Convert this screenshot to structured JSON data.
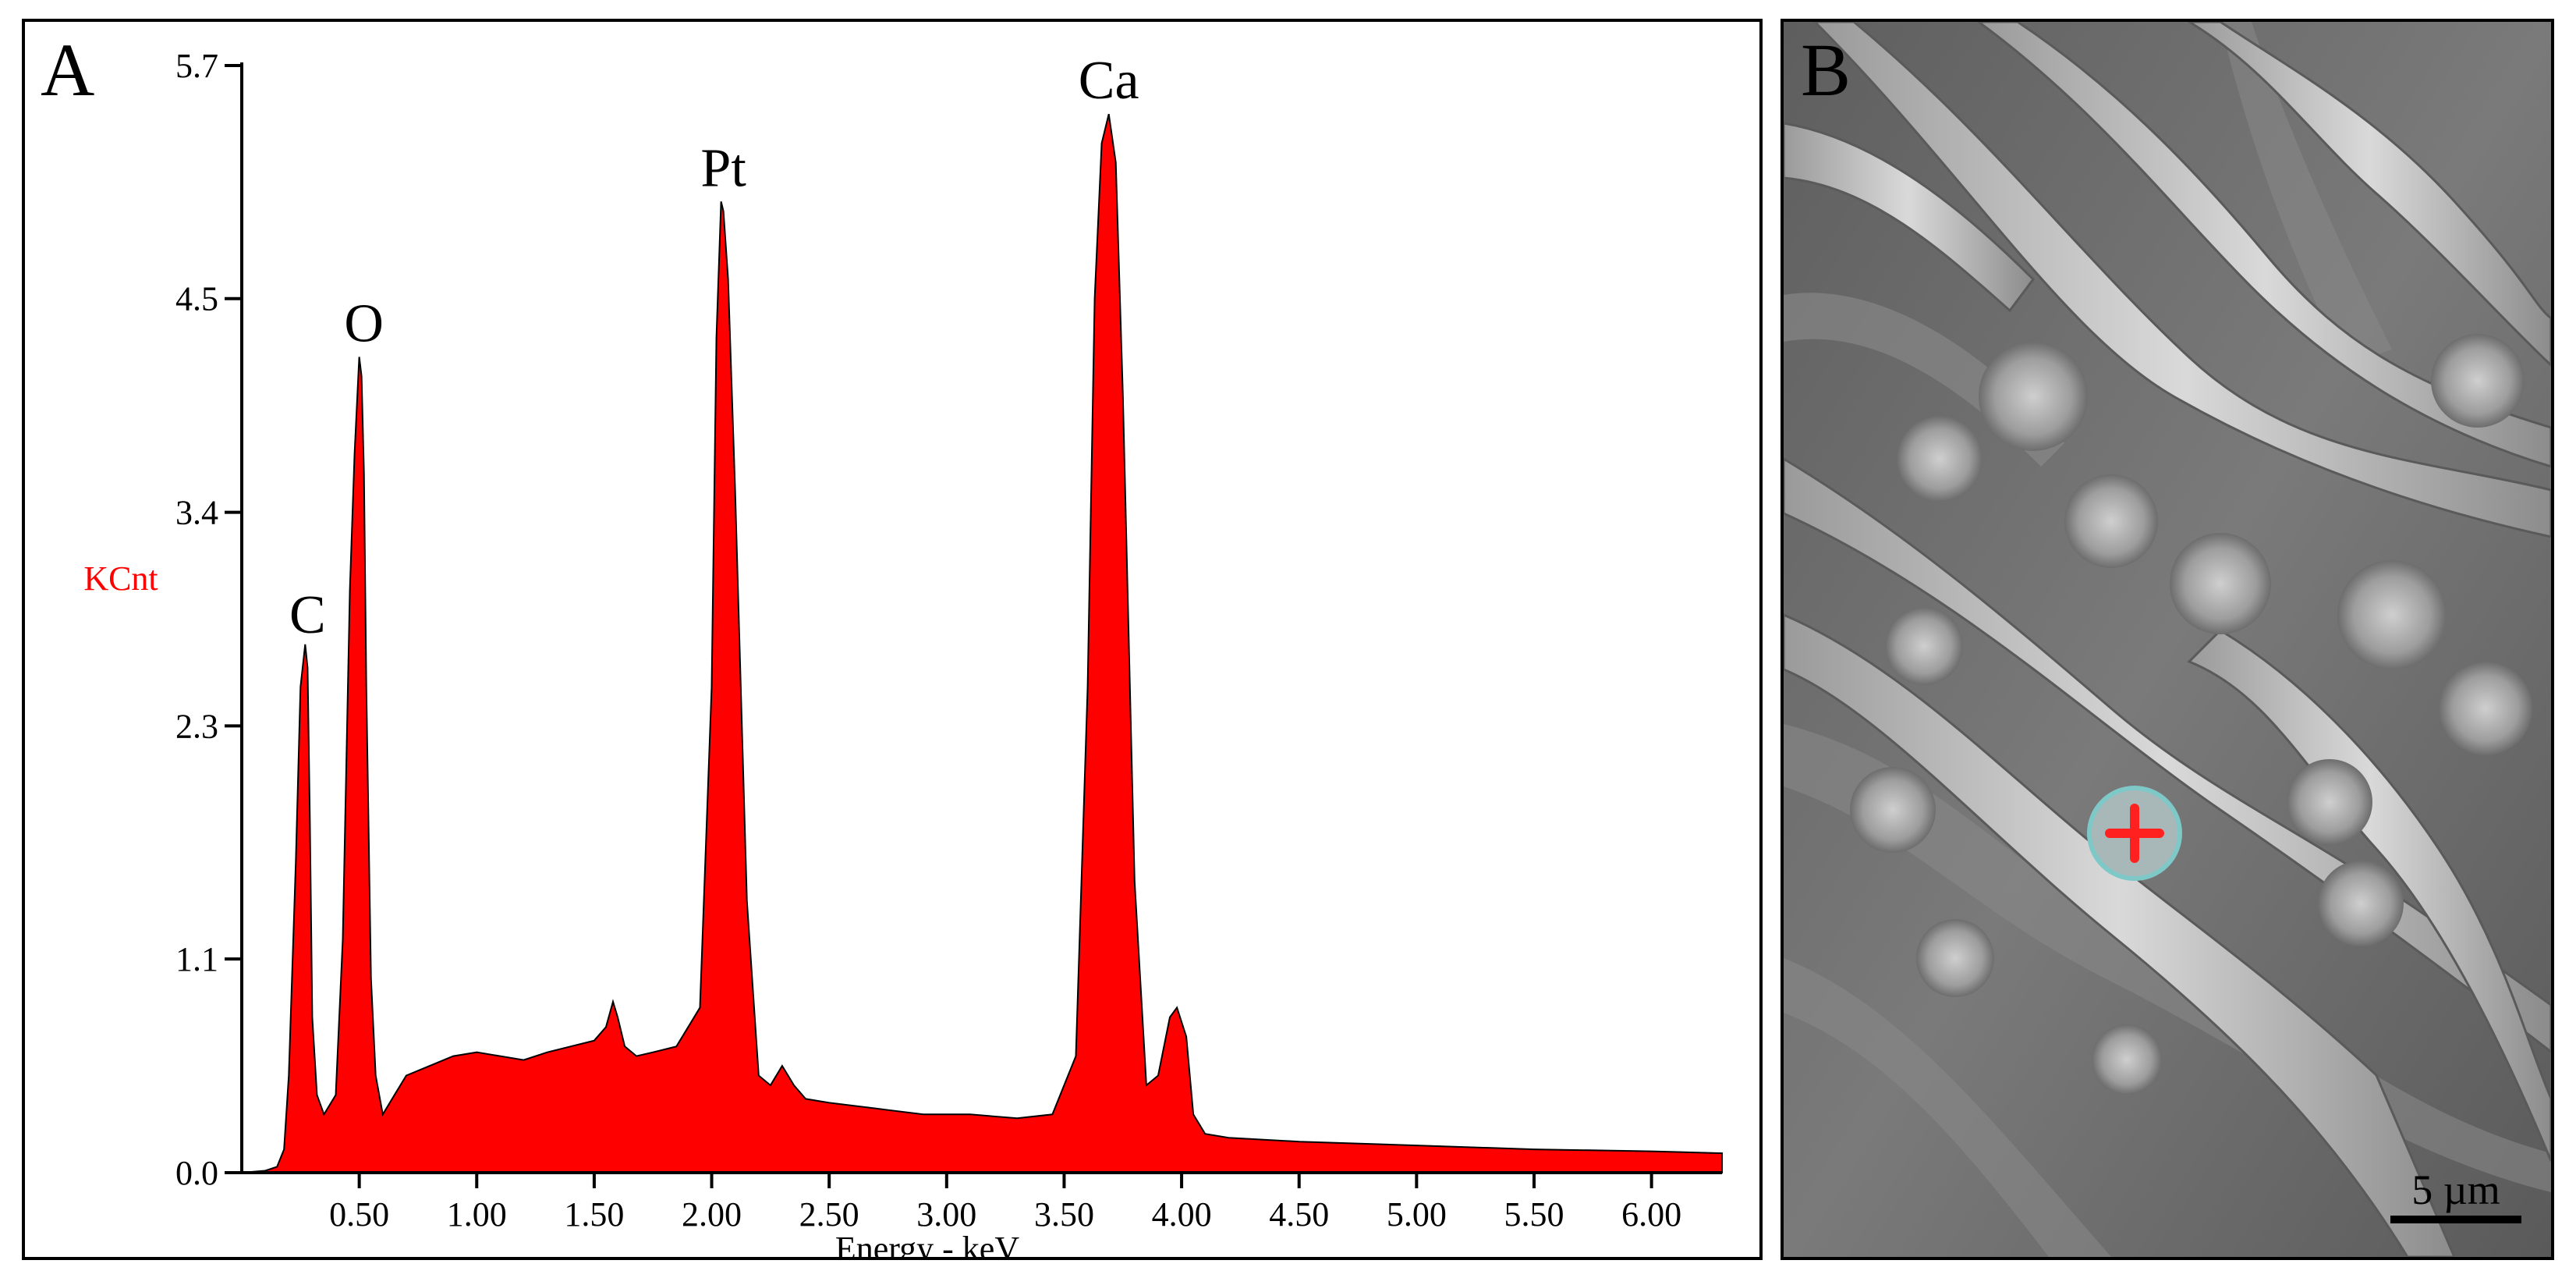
{
  "panels": {
    "a_label": "A",
    "b_label": "B"
  },
  "chart_data": {
    "type": "area",
    "xlabel": "Energy - keV",
    "ylabel": "KCnt",
    "xlim": [
      0.0,
      6.3
    ],
    "ylim": [
      0.0,
      5.7
    ],
    "x_ticks": [
      "0.50",
      "1.00",
      "1.50",
      "2.00",
      "2.50",
      "3.00",
      "3.50",
      "4.00",
      "4.50",
      "5.00",
      "5.50",
      "6.00"
    ],
    "y_ticks": [
      "0.0",
      "1.1",
      "2.3",
      "3.4",
      "4.5",
      "5.7"
    ],
    "colors": {
      "fill": "#ff0000",
      "ylabel": "#ff0000"
    },
    "peak_labels": [
      {
        "text": "C",
        "x": 0.28,
        "y": 2.7
      },
      {
        "text": "O",
        "x": 0.52,
        "y": 4.2
      },
      {
        "text": "Pt",
        "x": 2.05,
        "y": 5.0
      },
      {
        "text": "Ca",
        "x": 3.69,
        "y": 5.45
      }
    ],
    "x": [
      0.0,
      0.1,
      0.15,
      0.18,
      0.2,
      0.23,
      0.25,
      0.27,
      0.28,
      0.29,
      0.3,
      0.32,
      0.35,
      0.4,
      0.43,
      0.46,
      0.48,
      0.5,
      0.51,
      0.52,
      0.53,
      0.55,
      0.57,
      0.6,
      0.65,
      0.7,
      0.8,
      0.9,
      1.0,
      1.1,
      1.2,
      1.3,
      1.4,
      1.5,
      1.55,
      1.58,
      1.6,
      1.63,
      1.68,
      1.75,
      1.85,
      1.95,
      2.0,
      2.02,
      2.04,
      2.05,
      2.07,
      2.1,
      2.15,
      2.2,
      2.25,
      2.3,
      2.35,
      2.4,
      2.5,
      2.7,
      2.9,
      3.1,
      3.3,
      3.45,
      3.55,
      3.6,
      3.63,
      3.66,
      3.69,
      3.72,
      3.75,
      3.8,
      3.85,
      3.9,
      3.95,
      3.98,
      4.02,
      4.05,
      4.1,
      4.2,
      4.5,
      5.0,
      5.5,
      6.0,
      6.3
    ],
    "y": [
      0.0,
      0.01,
      0.03,
      0.12,
      0.5,
      1.6,
      2.5,
      2.72,
      2.6,
      1.8,
      0.8,
      0.4,
      0.3,
      0.4,
      1.2,
      3.0,
      3.7,
      4.2,
      4.1,
      3.6,
      2.5,
      1.0,
      0.5,
      0.3,
      0.4,
      0.5,
      0.55,
      0.6,
      0.62,
      0.6,
      0.58,
      0.62,
      0.65,
      0.68,
      0.75,
      0.88,
      0.8,
      0.65,
      0.6,
      0.62,
      0.65,
      0.85,
      2.5,
      4.3,
      5.0,
      4.95,
      4.6,
      3.5,
      1.4,
      0.5,
      0.45,
      0.55,
      0.45,
      0.38,
      0.36,
      0.33,
      0.3,
      0.3,
      0.28,
      0.3,
      0.6,
      2.5,
      4.5,
      5.3,
      5.45,
      5.2,
      4.0,
      1.5,
      0.45,
      0.5,
      0.8,
      0.85,
      0.7,
      0.3,
      0.2,
      0.18,
      0.16,
      0.14,
      0.12,
      0.11,
      0.1
    ]
  },
  "micrograph": {
    "scale_bar": "5 µm",
    "marker_color": "#ff2020"
  }
}
